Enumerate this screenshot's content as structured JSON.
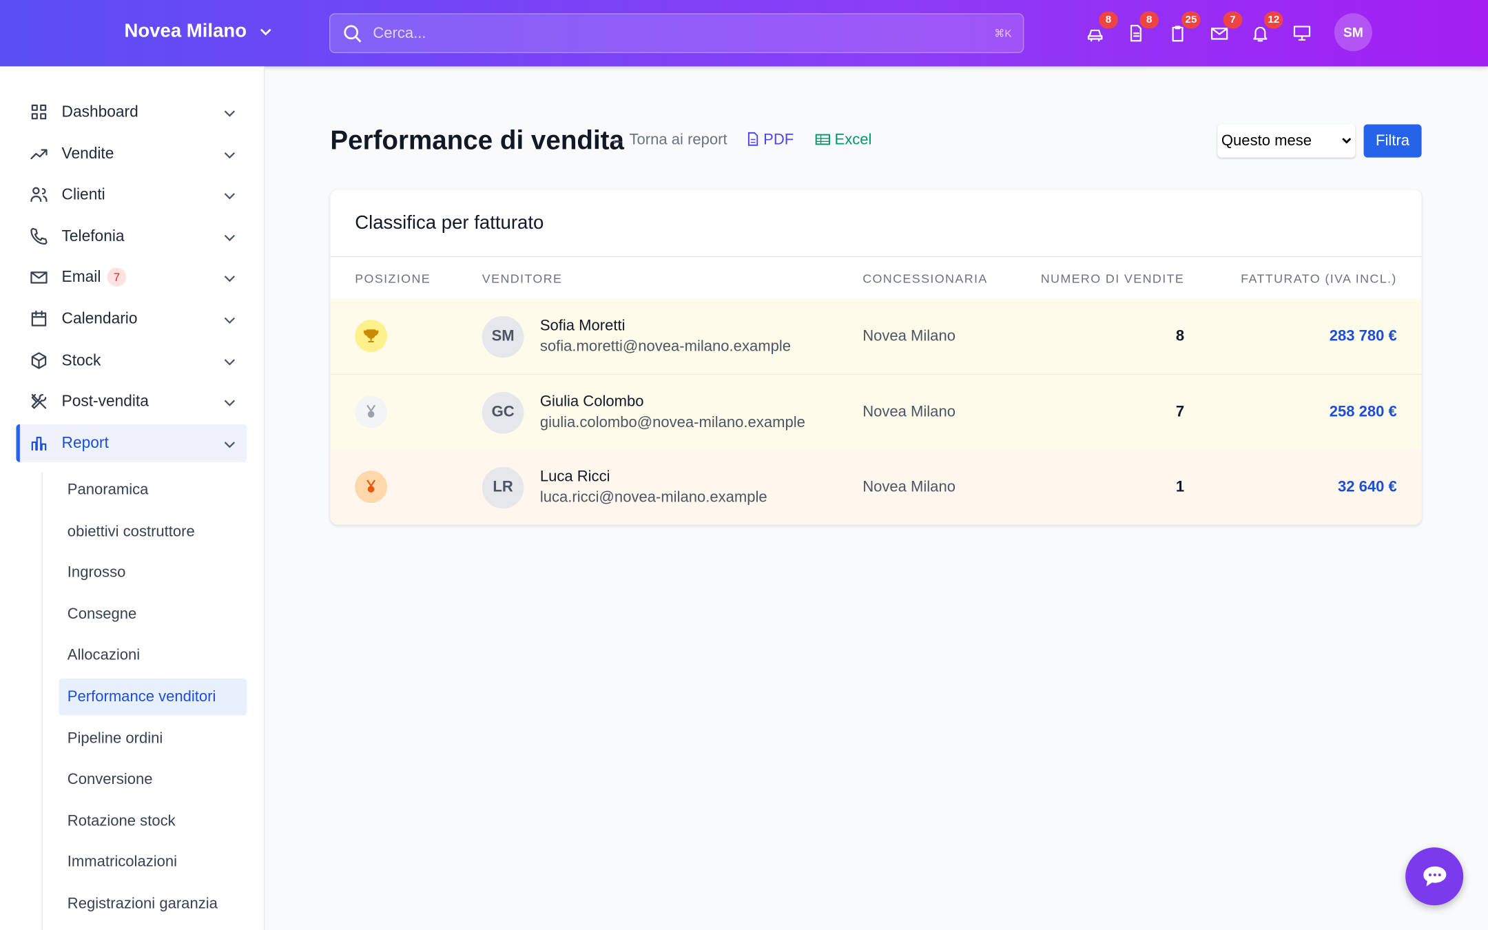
{
  "header": {
    "brand": "Novea Milano",
    "search_placeholder": "Cerca...",
    "shortcut": "⌘K",
    "badges": [
      8,
      8,
      25,
      7,
      12
    ],
    "avatar": "SM"
  },
  "sidebar": {
    "items": [
      {
        "label": "Dashboard"
      },
      {
        "label": "Vendite"
      },
      {
        "label": "Clienti"
      },
      {
        "label": "Telefonia"
      },
      {
        "label": "Email",
        "badge": 7
      },
      {
        "label": "Calendario"
      },
      {
        "label": "Stock"
      },
      {
        "label": "Post-vendita"
      },
      {
        "label": "Report"
      }
    ],
    "subitems": [
      "Panoramica",
      "obiettivi costruttore",
      "Ingrosso",
      "Consegne",
      "Allocazioni",
      "Performance venditori",
      "Pipeline ordini",
      "Conversione",
      "Rotazione stock",
      "Immatricolazioni",
      "Registrazioni garanzia"
    ]
  },
  "page": {
    "title": "Performance di vendita",
    "back": "Torna ai report",
    "pdf": "PDF",
    "excel": "Excel",
    "period": "Questo mese",
    "filter": "Filtra"
  },
  "table": {
    "title": "Classifica per fatturato",
    "columns": [
      "POSIZIONE",
      "VENDITORE",
      "CONCESSIONARIA",
      "NUMERO DI VENDITE",
      "FATTURATO (IVA INCL.)"
    ],
    "rows": [
      {
        "initials": "SM",
        "name": "Sofia Moretti",
        "email": "sofia.moretti@novea-milano.example",
        "dealer": "Novea Milano",
        "sales": 8,
        "revenue": "283 780 €"
      },
      {
        "initials": "GC",
        "name": "Giulia Colombo",
        "email": "giulia.colombo@novea-milano.example",
        "dealer": "Novea Milano",
        "sales": 7,
        "revenue": "258 280 €"
      },
      {
        "initials": "LR",
        "name": "Luca Ricci",
        "email": "luca.ricci@novea-milano.example",
        "dealer": "Novea Milano",
        "sales": 1,
        "revenue": "32 640 €"
      }
    ]
  }
}
